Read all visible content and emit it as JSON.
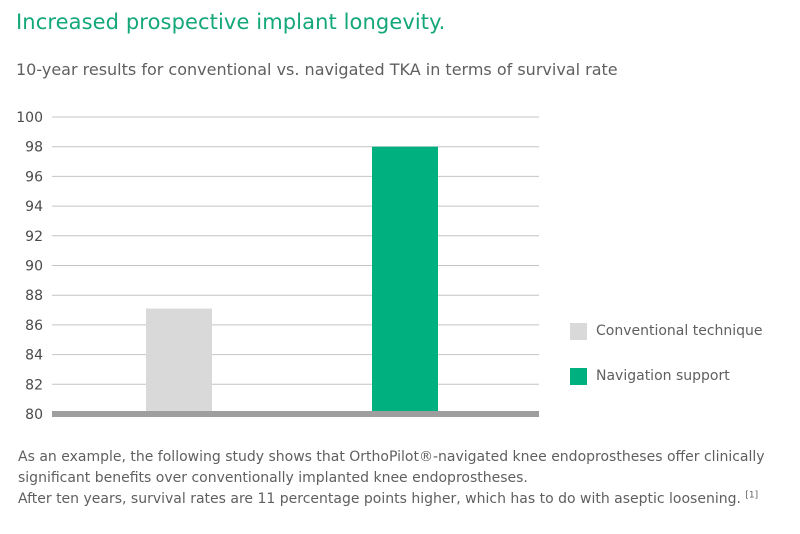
{
  "title": "Increased prospective implant longevity.",
  "subtitle": "10-year results for conventional vs. navigated TKA in terms of survival rate",
  "chart_data": {
    "type": "bar",
    "categories": [
      "Conventional technique",
      "Navigation support"
    ],
    "values": [
      87.1,
      98
    ],
    "colors": [
      "#d9d9d9",
      "#00b07f"
    ],
    "ylim": [
      80,
      100
    ],
    "yticks": [
      "100",
      "98",
      "96",
      "94",
      "92",
      "90",
      "88",
      "86",
      "84",
      "82",
      "80"
    ],
    "grid": true,
    "legend": "right"
  },
  "caption": {
    "line1": "As an example, the following study shows that OrthoPilot®-navigated knee endoprostheses offer clinically significant benefits over conventionally implanted knee endoprostheses.",
    "line2": "After ten years, survival rates are 11 percentage points higher, which has to do with aseptic loosening.",
    "reference": "[1]"
  }
}
